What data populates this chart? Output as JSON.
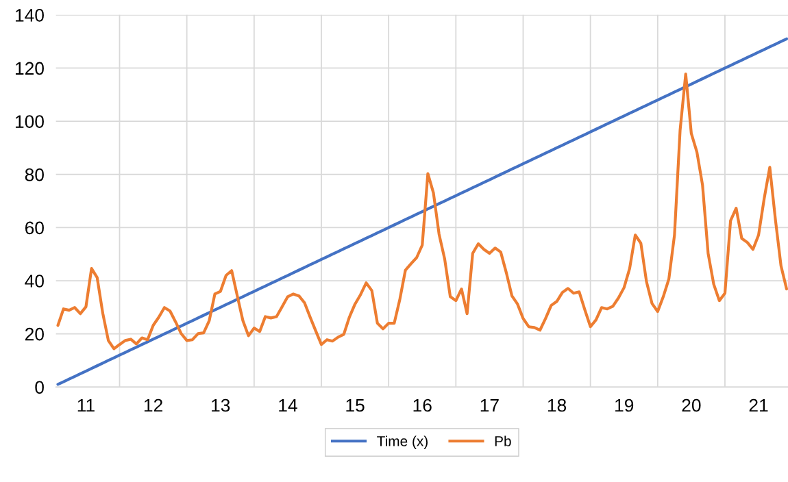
{
  "chart_data": {
    "type": "line",
    "categories": [
      null,
      null,
      null,
      null,
      null,
      "11",
      null,
      null,
      null,
      null,
      null,
      null,
      null,
      null,
      null,
      null,
      null,
      "12",
      null,
      null,
      null,
      null,
      null,
      null,
      null,
      null,
      null,
      null,
      null,
      "13",
      null,
      null,
      null,
      null,
      null,
      null,
      null,
      null,
      null,
      null,
      null,
      "14",
      null,
      null,
      null,
      null,
      null,
      null,
      null,
      null,
      null,
      null,
      null,
      "15",
      null,
      null,
      null,
      null,
      null,
      null,
      null,
      null,
      null,
      null,
      null,
      "16",
      null,
      null,
      null,
      null,
      null,
      null,
      null,
      null,
      null,
      null,
      null,
      "17",
      null,
      null,
      null,
      null,
      null,
      null,
      null,
      null,
      null,
      null,
      null,
      "18",
      null,
      null,
      null,
      null,
      null,
      null,
      null,
      null,
      null,
      null,
      null,
      "19",
      null,
      null,
      null,
      null,
      null,
      null,
      null,
      null,
      null,
      null,
      null,
      "20",
      null,
      null,
      null,
      null,
      null,
      null,
      null,
      null,
      null,
      null,
      null,
      "21",
      null,
      null,
      null,
      null,
      null
    ],
    "series": [
      {
        "name": "Time (x)",
        "color": "#4472c4",
        "values": [
          1,
          2,
          3,
          4,
          5,
          6,
          7,
          8,
          9,
          10,
          11,
          12,
          13,
          14,
          15,
          16,
          17,
          18,
          19,
          20,
          21,
          22,
          23,
          24,
          25,
          26,
          27,
          28,
          29,
          30,
          31,
          32,
          33,
          34,
          35,
          36,
          37,
          38,
          39,
          40,
          41,
          42,
          43,
          44,
          45,
          46,
          47,
          48,
          49,
          50,
          51,
          52,
          53,
          54,
          55,
          56,
          57,
          58,
          59,
          60,
          61,
          62,
          63,
          64,
          65,
          66,
          67,
          68,
          69,
          70,
          71,
          72,
          73,
          74,
          75,
          76,
          77,
          78,
          79,
          80,
          81,
          82,
          83,
          84,
          85,
          86,
          87,
          88,
          89,
          90,
          91,
          92,
          93,
          94,
          95,
          96,
          97,
          98,
          99,
          100,
          101,
          102,
          103,
          104,
          105,
          106,
          107,
          108,
          109,
          110,
          111,
          112,
          113,
          114,
          115,
          116,
          117,
          118,
          119,
          120,
          121,
          122,
          123,
          124,
          125,
          126,
          127,
          128,
          129,
          130,
          131
        ]
      },
      {
        "name": "Pb",
        "color": "#ed7d31",
        "values": [
          23.2,
          29.4,
          28.9,
          29.9,
          27.6,
          30.2,
          44.6,
          41.2,
          27.8,
          17.5,
          14.4,
          16,
          17.5,
          18,
          16.2,
          18.5,
          17.8,
          23.2,
          26.3,
          29.9,
          28.6,
          24.5,
          20.1,
          17.5,
          17.8,
          20.1,
          20.4,
          25,
          35,
          36,
          42,
          43.8,
          34.3,
          25,
          19.3,
          22.2,
          20.9,
          26.5,
          26,
          26.5,
          30.2,
          34,
          35,
          34.3,
          31.7,
          26.3,
          21.1,
          16,
          17.8,
          17.3,
          18.8,
          19.8,
          26.3,
          31.2,
          34.8,
          39.2,
          36.3,
          24,
          21.9,
          24,
          24,
          33,
          44,
          46.4,
          48.7,
          53.4,
          80.3,
          73,
          57.5,
          48.2,
          34,
          32.5,
          36.9,
          27.6,
          50.3,
          53.9,
          51.8,
          50.3,
          52.3,
          50.8,
          43,
          34.3,
          31.2,
          25.8,
          22.7,
          22.4,
          21.4,
          25.8,
          30.7,
          32.2,
          35.6,
          37.1,
          35.3,
          35.8,
          29.1,
          22.7,
          25.3,
          29.9,
          29.4,
          30.4,
          33.5,
          37.4,
          44.6,
          57.2,
          54.1,
          39.7,
          31.4,
          28.4,
          34,
          40.7,
          57.2,
          96.6,
          117.8,
          95.4,
          88.4,
          76,
          50.3,
          38.7,
          32.5,
          35.3,
          62.6,
          67.3,
          55.9,
          54.4,
          51.8,
          57.2,
          70.9,
          82.7,
          63.1,
          45.6,
          36.9
        ]
      }
    ],
    "ylim": [
      0,
      140
    ],
    "yticks": [
      0,
      20,
      40,
      60,
      80,
      100,
      120,
      140
    ],
    "grid": true,
    "legend": "bottom",
    "marker": "none",
    "line_style": "solid"
  }
}
